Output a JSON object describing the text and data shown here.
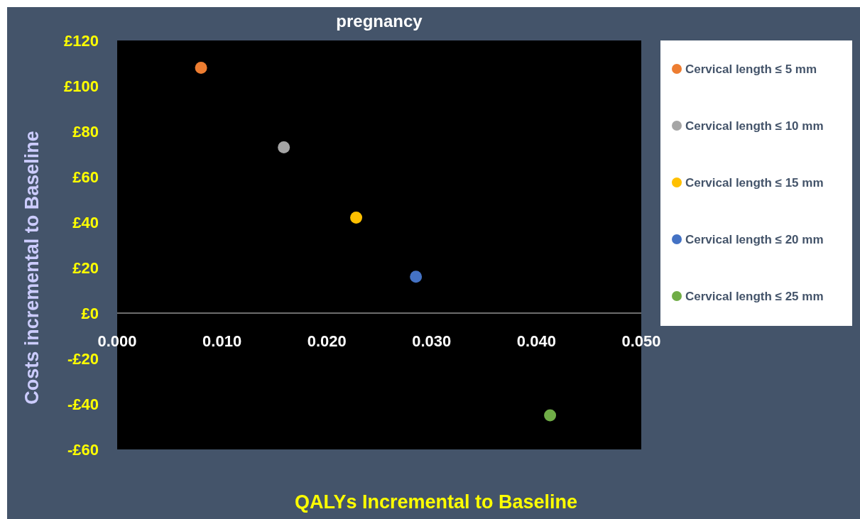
{
  "chart_data": {
    "type": "scatter",
    "title": "pregnancy",
    "xlabel": "QALYs Incremental to Baseline",
    "ylabel": "Costs incremental to Baseline",
    "xlim": [
      0,
      0.05
    ],
    "ylim": [
      -60,
      120
    ],
    "xticks": [
      {
        "value": 0,
        "label": "0.000"
      },
      {
        "value": 0.01,
        "label": "0.010"
      },
      {
        "value": 0.02,
        "label": "0.020"
      },
      {
        "value": 0.03,
        "label": "0.030"
      },
      {
        "value": 0.04,
        "label": "0.040"
      },
      {
        "value": 0.05,
        "label": "0.050"
      }
    ],
    "yticks": [
      {
        "value": -60,
        "label": "-£60"
      },
      {
        "value": -40,
        "label": "-£40"
      },
      {
        "value": -20,
        "label": "-£20"
      },
      {
        "value": 0,
        "label": "£0"
      },
      {
        "value": 20,
        "label": "£20"
      },
      {
        "value": 40,
        "label": "£40"
      },
      {
        "value": 60,
        "label": "£60"
      },
      {
        "value": 80,
        "label": "£80"
      },
      {
        "value": 100,
        "label": "£100"
      },
      {
        "value": 120,
        "label": "£120"
      }
    ],
    "grid": false,
    "legend": "right",
    "marker": "circle",
    "series": [
      {
        "name": "Cervical length ≤ 5 mm",
        "color": "#ed7d31",
        "x": [
          0.008
        ],
        "values": [
          108
        ]
      },
      {
        "name": "Cervical length ≤ 10 mm",
        "color": "#a5a5a5",
        "x": [
          0.0159
        ],
        "values": [
          73
        ]
      },
      {
        "name": "Cervical length ≤ 15 mm",
        "color": "#ffc000",
        "x": [
          0.0228
        ],
        "values": [
          42
        ]
      },
      {
        "name": "Cervical length ≤ 20 mm",
        "color": "#4472c4",
        "x": [
          0.0285
        ],
        "values": [
          16
        ]
      },
      {
        "name": "Cervical length ≤ 25 mm",
        "color": "#70ad47",
        "x": [
          0.0413
        ],
        "values": [
          -45
        ]
      }
    ]
  }
}
